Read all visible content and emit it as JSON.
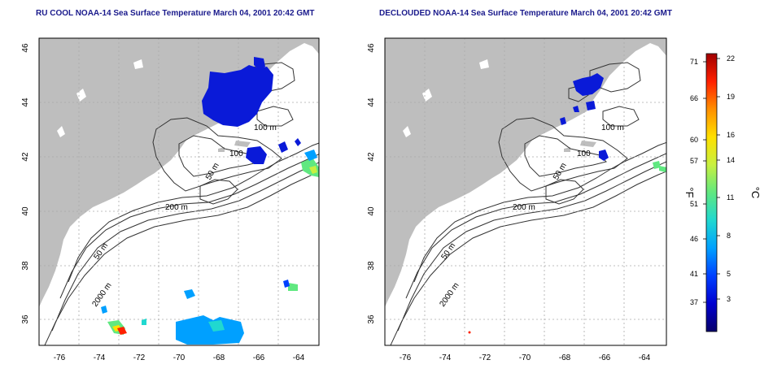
{
  "titles": {
    "left": "RU COOL NOAA-14 Sea Surface Temperature March 04, 2001 20:42 GMT",
    "right": "DECLOUDED NOAA-14 Sea Surface Temperature March 04, 2001 20:42 GMT"
  },
  "map": {
    "lon_ticks": [
      "-76",
      "-74",
      "-72",
      "-70",
      "-68",
      "-66",
      "-64"
    ],
    "lat_ticks": [
      "36",
      "38",
      "40",
      "42",
      "44",
      "46"
    ],
    "lon_range": [
      -77,
      -63
    ],
    "lat_range": [
      35,
      46
    ]
  },
  "contour_labels": [
    {
      "id": "c100a",
      "text": "100 m"
    },
    {
      "id": "c100b",
      "text": "100"
    },
    {
      "id": "c50a",
      "text": "50 m"
    },
    {
      "id": "c200",
      "text": "200 m"
    },
    {
      "id": "c50b",
      "text": "50 m"
    },
    {
      "id": "c2000",
      "text": "2000 m"
    }
  ],
  "colorbar": {
    "fahrenheit_ticks": [
      "71",
      "66",
      "60",
      "57",
      "51",
      "46",
      "41",
      "37"
    ],
    "celsius_ticks": [
      "22",
      "19",
      "16",
      "14",
      "11",
      "8",
      "5",
      "3"
    ],
    "f_label": "°F",
    "c_label": "°C",
    "colors": [
      "#08006a",
      "#0000d0",
      "#0040ff",
      "#00a0ff",
      "#20d8d0",
      "#60e880",
      "#c8f040",
      "#ffe000",
      "#ff9000",
      "#ff2000",
      "#a00000"
    ]
  },
  "colors": {
    "land": "#bebebe",
    "title": "#1a1a8c",
    "cold_sst": "#0a1ad8"
  }
}
